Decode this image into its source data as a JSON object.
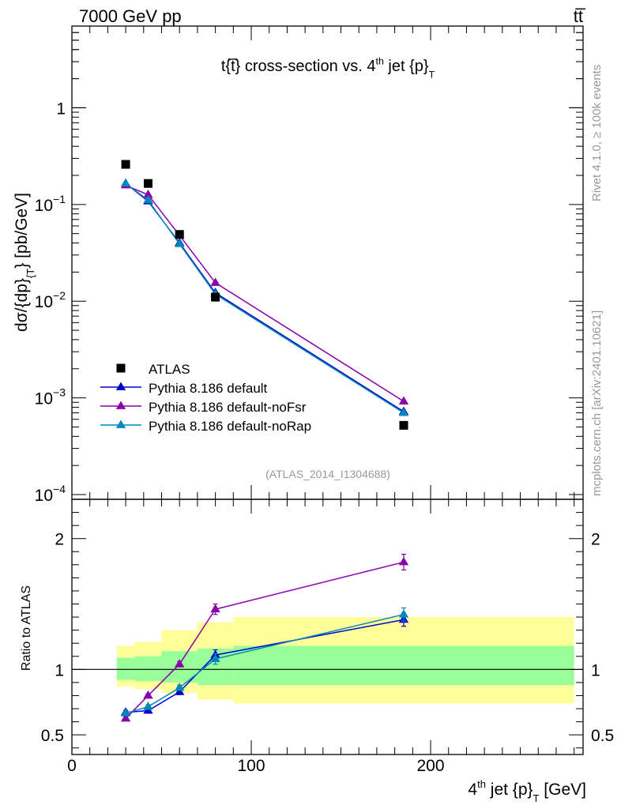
{
  "header": {
    "energy_label": "7000 GeV pp",
    "process_label": "tt̅"
  },
  "side_labels": {
    "rivet": "Rivet 4.1.0, ≥ 100k events",
    "mcplots": "mcplots.cern.ch [arXiv:2401.10621]"
  },
  "watermark": "(ATLAS_2014_I1304688)",
  "colors": {
    "data": "#000000",
    "default": "#0000cc",
    "noFsr": "#8800aa",
    "noRap": "#0088bb",
    "band_inner": "#99ff99",
    "band_outer": "#ffff99"
  },
  "chart_data": [
    {
      "type": "scatter",
      "scale": "log",
      "title": "t{t̅} cross-section vs. 4th jet {p}T",
      "title_parts": {
        "main": "t{t̅} cross-section vs. 4",
        "sup": "th",
        "mid": " jet {p}",
        "sub": "T"
      },
      "ylabel_parts": {
        "main": "dσ/{dp}",
        "sub": "{T",
        "tail": "} [pb/GeV]"
      },
      "xlim": [
        0,
        285
      ],
      "ylim": [
        0.0001,
        7
      ],
      "y_ticks": [
        {
          "value": 0.0001,
          "base": "10",
          "exp": "−4"
        },
        {
          "value": 0.001,
          "base": "10",
          "exp": "−3"
        },
        {
          "value": 0.01,
          "base": "10",
          "exp": "−2"
        },
        {
          "value": 0.1,
          "base": "10",
          "exp": "−1"
        },
        {
          "value": 1,
          "base": "1",
          "exp": ""
        }
      ],
      "legend": [
        {
          "label": "ATLAS",
          "key": "data"
        },
        {
          "label": "Pythia 8.186 default",
          "key": "default"
        },
        {
          "label": "Pythia 8.186 default-noFsr",
          "key": "noFsr"
        },
        {
          "label": "Pythia 8.186 default-noRap",
          "key": "noRap"
        }
      ],
      "data": {
        "name": "ATLAS",
        "x": [
          30,
          42.5,
          60,
          80,
          185
        ],
        "y": [
          0.26,
          0.165,
          0.049,
          0.011,
          0.00052
        ]
      },
      "series": [
        {
          "name": "Pythia 8.186 default",
          "key": "default",
          "x": [
            30,
            42.5,
            60,
            80,
            185
          ],
          "y": [
            0.165,
            0.108,
            0.04,
            0.0122,
            0.00072
          ]
        },
        {
          "name": "Pythia 8.186 default-noFsr",
          "key": "noFsr",
          "x": [
            30,
            42.5,
            60,
            80,
            185
          ],
          "y": [
            0.158,
            0.126,
            0.048,
            0.0155,
            0.00092
          ]
        },
        {
          "name": "Pythia 8.186 default-noRap",
          "key": "noRap",
          "x": [
            30,
            42.5,
            60,
            80,
            185
          ],
          "y": [
            0.165,
            0.111,
            0.039,
            0.0118,
            0.0007
          ]
        }
      ]
    },
    {
      "type": "scatter",
      "title": "",
      "ylabel": "Ratio to ATLAS",
      "xlabel_parts": {
        "pre": "4",
        "sup": "th",
        "mid": " jet {p}",
        "sub": "T",
        "tail": " [GeV]"
      },
      "xlim": [
        0,
        285
      ],
      "ylim": [
        0.35,
        2.3
      ],
      "y_ticks": [
        {
          "value": 0.5,
          "label": "0.5"
        },
        {
          "value": 1,
          "label": "1"
        },
        {
          "value": 2,
          "label": "2"
        }
      ],
      "x_ticks": [
        {
          "value": 0,
          "label": "0"
        },
        {
          "value": 100,
          "label": "100"
        },
        {
          "value": 200,
          "label": "200"
        }
      ],
      "bands": [
        {
          "x0": 25,
          "x1": 35,
          "inner": [
            0.92,
            1.09
          ],
          "outer": [
            0.87,
            1.18
          ]
        },
        {
          "x0": 35,
          "x1": 50,
          "inner": [
            0.91,
            1.1
          ],
          "outer": [
            0.85,
            1.21
          ]
        },
        {
          "x0": 50,
          "x1": 70,
          "inner": [
            0.9,
            1.14
          ],
          "outer": [
            0.82,
            1.3
          ]
        },
        {
          "x0": 70,
          "x1": 90,
          "inner": [
            0.88,
            1.16
          ],
          "outer": [
            0.77,
            1.36
          ]
        },
        {
          "x0": 90,
          "x1": 280,
          "inner": [
            0.88,
            1.18
          ],
          "outer": [
            0.74,
            1.4
          ]
        }
      ],
      "series": [
        {
          "name": "Pythia 8.186 default",
          "key": "default",
          "x": [
            30,
            42.5,
            60,
            80,
            185
          ],
          "y": [
            0.672,
            0.685,
            0.828,
            1.11,
            1.38
          ],
          "err": [
            0.015,
            0.015,
            0.02,
            0.04,
            0.05
          ]
        },
        {
          "name": "Pythia 8.186 default-noFsr",
          "key": "noFsr",
          "x": [
            30,
            42.5,
            60,
            80,
            185
          ],
          "y": [
            0.625,
            0.8,
            1.04,
            1.46,
            1.82
          ],
          "err": [
            0.015,
            0.015,
            0.02,
            0.04,
            0.06
          ]
        },
        {
          "name": "Pythia 8.186 default-noRap",
          "key": "noRap",
          "x": [
            30,
            42.5,
            60,
            80,
            185
          ],
          "y": [
            0.665,
            0.715,
            0.86,
            1.08,
            1.42
          ],
          "err": [
            0.015,
            0.015,
            0.02,
            0.04,
            0.05
          ]
        }
      ]
    }
  ]
}
